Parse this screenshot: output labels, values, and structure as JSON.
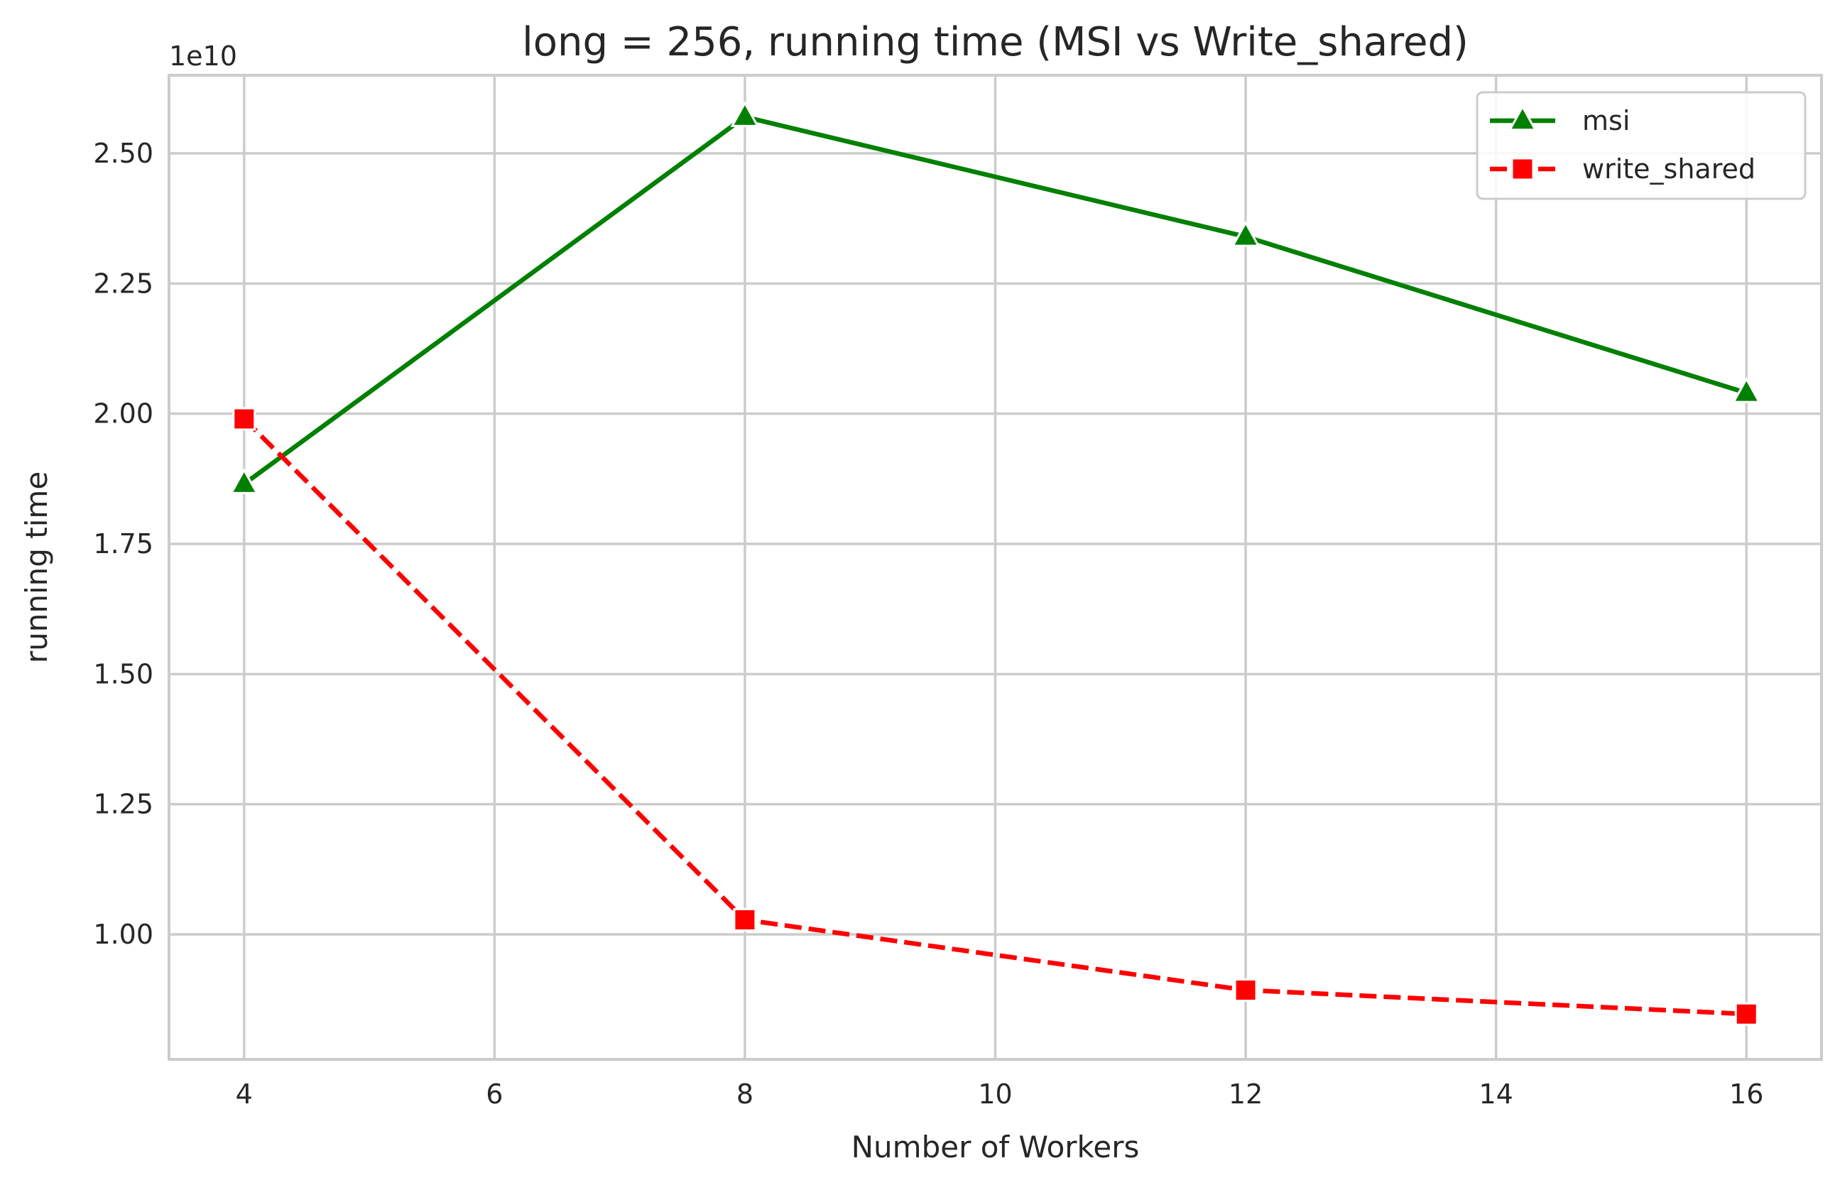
{
  "chart_data": {
    "type": "line",
    "title": "long = 256, running time (MSI vs Write_shared)",
    "xlabel": "Number of Workers",
    "ylabel": "running time",
    "y_offset_label": "1e10",
    "y_scale_factor": 10000000000,
    "xlim": [
      3.4,
      16.6
    ],
    "ylim": [
      0.76,
      2.65
    ],
    "x_ticks": [
      4,
      6,
      8,
      10,
      12,
      14,
      16
    ],
    "x_tick_labels": [
      "4",
      "6",
      "8",
      "10",
      "12",
      "14",
      "16"
    ],
    "y_ticks": [
      1.0,
      1.25,
      1.5,
      1.75,
      2.0,
      2.25,
      2.5
    ],
    "y_tick_labels": [
      "1.00",
      "1.25",
      "1.50",
      "1.75",
      "2.00",
      "2.25",
      "2.50"
    ],
    "grid": true,
    "legend_position": "top-right",
    "x": [
      4,
      8,
      12,
      16
    ],
    "series": [
      {
        "name": "msi",
        "values": [
          1.865,
          2.57,
          2.34,
          2.04
        ],
        "color": "#008000",
        "line_style": "solid",
        "marker": "triangle-up"
      },
      {
        "name": "write_shared",
        "values": [
          1.99,
          1.028,
          0.893,
          0.847
        ],
        "color": "#ff0000",
        "line_style": "dashed",
        "marker": "square"
      }
    ]
  }
}
